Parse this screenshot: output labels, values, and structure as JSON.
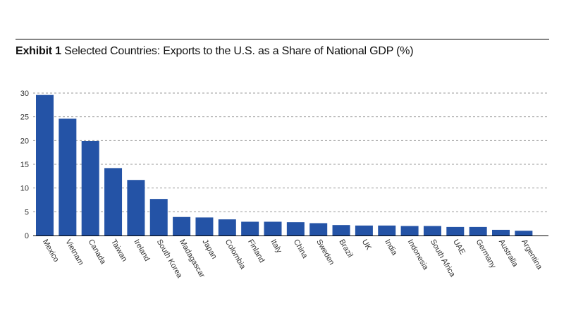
{
  "header": {
    "exhibit_label": "Exhibit 1",
    "title": "Selected Countries: Exports to the U.S. as a Share of National GDP (%)"
  },
  "colors": {
    "bar": "#2453a6",
    "grid": "#9a9a9a",
    "axis": "#000000"
  },
  "chart_data": {
    "type": "bar",
    "title": "Selected Countries: Exports to the U.S. as a Share of National GDP (%)",
    "xlabel": "",
    "ylabel": "",
    "ylim": [
      0,
      30
    ],
    "yticks": [
      0,
      5,
      10,
      15,
      20,
      25,
      30
    ],
    "grid": true,
    "grid_style": "dashed",
    "categories": [
      "Mexico",
      "Vietnam",
      "Canada",
      "Taiwan",
      "Ireland",
      "South Korea",
      "Madagascar",
      "Japan",
      "Colombia",
      "Finland",
      "Italy",
      "China",
      "Sweden",
      "Brazil",
      "UK",
      "India",
      "Indonesia",
      "South Africa",
      "UAE",
      "Germany",
      "Australia",
      "Argentina"
    ],
    "values": [
      29.6,
      24.6,
      19.9,
      14.2,
      11.7,
      7.7,
      3.9,
      3.8,
      3.4,
      2.9,
      2.9,
      2.8,
      2.6,
      2.2,
      2.1,
      2.1,
      2.0,
      2.0,
      1.8,
      1.8,
      1.2,
      1.0
    ]
  }
}
